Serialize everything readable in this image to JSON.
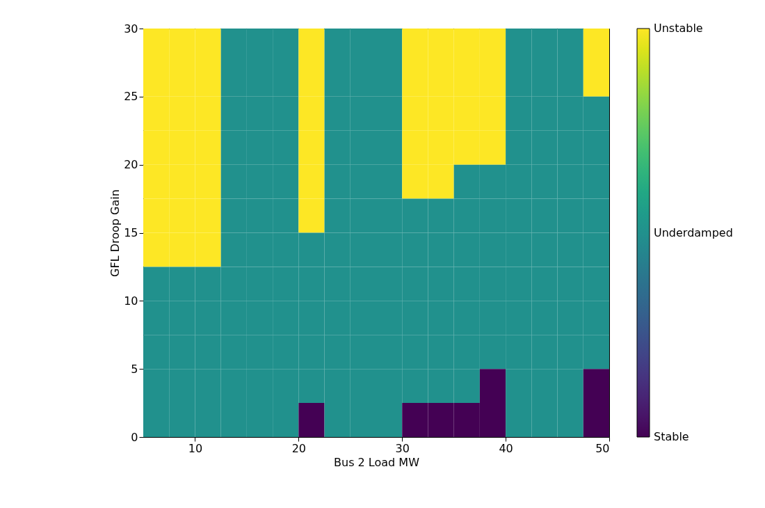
{
  "chart_data": {
    "type": "heatmap",
    "xlabel": "Bus 2 Load MW",
    "ylabel": "GFL Droop Gain",
    "x": [
      6.25,
      8.75,
      11.25,
      13.75,
      16.25,
      18.75,
      21.25,
      23.75,
      26.25,
      28.75,
      31.25,
      33.75,
      36.25,
      38.75,
      41.25,
      43.75,
      46.25,
      48.75
    ],
    "y": [
      28.75,
      26.25,
      23.75,
      21.25,
      18.75,
      16.25,
      13.75,
      11.25,
      8.75,
      6.25,
      3.75,
      1.25
    ],
    "cells": [
      [
        2,
        2,
        2,
        1,
        1,
        1,
        2,
        1,
        1,
        1,
        2,
        2,
        2,
        2,
        1,
        1,
        1,
        2
      ],
      [
        2,
        2,
        2,
        1,
        1,
        1,
        2,
        1,
        1,
        1,
        2,
        2,
        2,
        2,
        1,
        1,
        1,
        2
      ],
      [
        2,
        2,
        2,
        1,
        1,
        1,
        2,
        1,
        1,
        1,
        2,
        2,
        2,
        2,
        1,
        1,
        1,
        1
      ],
      [
        2,
        2,
        2,
        1,
        1,
        1,
        2,
        1,
        1,
        1,
        2,
        2,
        2,
        2,
        1,
        1,
        1,
        1
      ],
      [
        2,
        2,
        2,
        1,
        1,
        1,
        2,
        1,
        1,
        1,
        2,
        2,
        1,
        1,
        1,
        1,
        1,
        1
      ],
      [
        2,
        2,
        2,
        1,
        1,
        1,
        2,
        1,
        1,
        1,
        1,
        1,
        1,
        1,
        1,
        1,
        1,
        1
      ],
      [
        2,
        2,
        2,
        1,
        1,
        1,
        1,
        1,
        1,
        1,
        1,
        1,
        1,
        1,
        1,
        1,
        1,
        1
      ],
      [
        1,
        1,
        1,
        1,
        1,
        1,
        1,
        1,
        1,
        1,
        1,
        1,
        1,
        1,
        1,
        1,
        1,
        1
      ],
      [
        1,
        1,
        1,
        1,
        1,
        1,
        1,
        1,
        1,
        1,
        1,
        1,
        1,
        1,
        1,
        1,
        1,
        1
      ],
      [
        1,
        1,
        1,
        1,
        1,
        1,
        1,
        1,
        1,
        1,
        1,
        1,
        1,
        1,
        1,
        1,
        1,
        1
      ],
      [
        1,
        1,
        1,
        1,
        1,
        1,
        1,
        1,
        1,
        1,
        1,
        1,
        1,
        0,
        1,
        1,
        1,
        0
      ],
      [
        1,
        1,
        1,
        1,
        1,
        1,
        0,
        1,
        1,
        1,
        0,
        0,
        0,
        0,
        1,
        1,
        1,
        0
      ]
    ],
    "xlim": [
      5,
      50
    ],
    "xticks": [
      10,
      20,
      30,
      40,
      50
    ],
    "ylim": [
      0,
      30
    ],
    "yticks": [
      0,
      5,
      10,
      15,
      20,
      25,
      30
    ],
    "clim": [
      0,
      2
    ],
    "cticks": [
      {
        "value": 0,
        "label": "Stable"
      },
      {
        "value": 1,
        "label": "Underdamped"
      },
      {
        "value": 2,
        "label": "Unstable"
      }
    ]
  }
}
